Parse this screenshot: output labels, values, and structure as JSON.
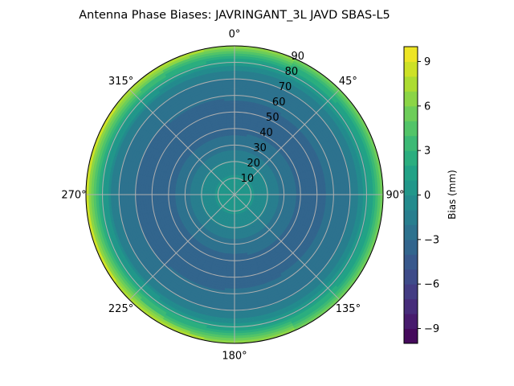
{
  "chart_data": {
    "type": "polar-contour",
    "title": "Antenna Phase Biases: JAVRINGANT_3L   JAVD SBAS-L5",
    "angle_direction": "clockwise",
    "angle_zero": "top",
    "angle_tick_labels": [
      "0°",
      "45°",
      "90°",
      "135°",
      "180°",
      "225°",
      "270°",
      "315°"
    ],
    "radial_tick_labels": [
      "10",
      "20",
      "30",
      "40",
      "50",
      "60",
      "70",
      "80",
      "90"
    ],
    "radial_range": [
      0,
      90
    ],
    "grid": true,
    "colormap": "viridis",
    "colorbar": {
      "label": "Bias (mm)",
      "range": [
        -10,
        10
      ],
      "level_step": 1,
      "tick_labels": [
        "−9",
        "−6",
        "−3",
        "0",
        "3",
        "6",
        "9"
      ],
      "ticks": [
        -9,
        -6,
        -3,
        0,
        3,
        6,
        9
      ]
    },
    "zenith": [
      0,
      10,
      20,
      30,
      40,
      50,
      60,
      70,
      75,
      80,
      85,
      90
    ],
    "bias_profile_west": [
      0.5,
      0.3,
      -0.8,
      -2.5,
      -3.3,
      -3.4,
      -3.0,
      -2.0,
      -1.0,
      1.5,
      4.5,
      9.0
    ],
    "bias_profile_east": [
      0.5,
      0.3,
      -0.8,
      -2.5,
      -3.2,
      -3.2,
      -2.8,
      -2.0,
      -1.2,
      0.5,
      2.5,
      5.5
    ]
  }
}
